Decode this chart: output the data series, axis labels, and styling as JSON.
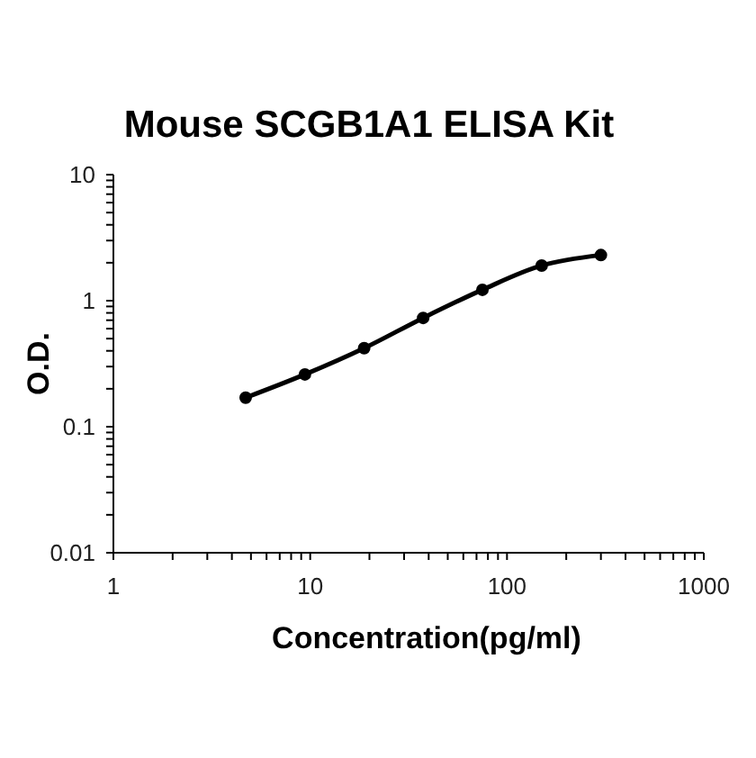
{
  "chart_data": {
    "type": "line",
    "title": "Mouse SCGB1A1 ELISA Kit",
    "xlabel": "Concentration(pg/ml)",
    "ylabel": "O.D.",
    "x": [
      4.7,
      9.4,
      18.8,
      37.5,
      75,
      150,
      300
    ],
    "values": [
      0.17,
      0.26,
      0.42,
      0.73,
      1.22,
      1.9,
      2.3
    ],
    "color": "#000000",
    "log": "xy",
    "xlim": [
      1,
      1000
    ],
    "ylim": [
      0.01,
      10
    ],
    "xticks": [
      1,
      {
        "value": 2,
        "label": null
      },
      {
        "value": 3,
        "label": null
      },
      {
        "value": 4,
        "label": null
      },
      {
        "value": 5,
        "label": null
      },
      {
        "value": 6,
        "label": null
      },
      {
        "value": 7,
        "label": null
      },
      {
        "value": 8,
        "label": null
      },
      {
        "value": 9,
        "label": null
      },
      10,
      {
        "value": 20,
        "label": null
      },
      {
        "value": 30,
        "label": null
      },
      {
        "value": 40,
        "label": null
      },
      {
        "value": 50,
        "label": null
      },
      {
        "value": 60,
        "label": null
      },
      {
        "value": 70,
        "label": null
      },
      {
        "value": 80,
        "label": null
      },
      {
        "value": 90,
        "label": null
      },
      100,
      {
        "value": 200,
        "label": null
      },
      {
        "value": 300,
        "label": null
      },
      {
        "value": 400,
        "label": null
      },
      {
        "value": 500,
        "label": null
      },
      {
        "value": 600,
        "label": null
      },
      {
        "value": 700,
        "label": null
      },
      {
        "value": 800,
        "label": null
      },
      {
        "value": 900,
        "label": null
      },
      1000
    ],
    "yticks": [
      0.01,
      {
        "value": 0.02,
        "label": null
      },
      {
        "value": 0.03,
        "label": null
      },
      {
        "value": 0.04,
        "label": null
      },
      {
        "value": 0.05,
        "label": null
      },
      {
        "value": 0.06,
        "label": null
      },
      {
        "value": 0.07,
        "label": null
      },
      {
        "value": 0.08,
        "label": null
      },
      {
        "value": 0.09,
        "label": null
      },
      0.1,
      {
        "value": 0.2,
        "label": null
      },
      {
        "value": 0.3,
        "label": null
      },
      {
        "value": 0.4,
        "label": null
      },
      {
        "value": 0.5,
        "label": null
      },
      {
        "value": 0.6,
        "label": null
      },
      {
        "value": 0.7,
        "label": null
      },
      {
        "value": 0.8,
        "label": null
      },
      {
        "value": 0.9,
        "label": null
      },
      1,
      {
        "value": 2,
        "label": null
      },
      {
        "value": 3,
        "label": null
      },
      {
        "value": 4,
        "label": null
      },
      {
        "value": 5,
        "label": null
      },
      {
        "value": 6,
        "label": null
      },
      {
        "value": 7,
        "label": null
      },
      {
        "value": 8,
        "label": null
      },
      {
        "value": 9,
        "label": null
      },
      10
    ],
    "marker": "circle",
    "line_style": "solid"
  }
}
